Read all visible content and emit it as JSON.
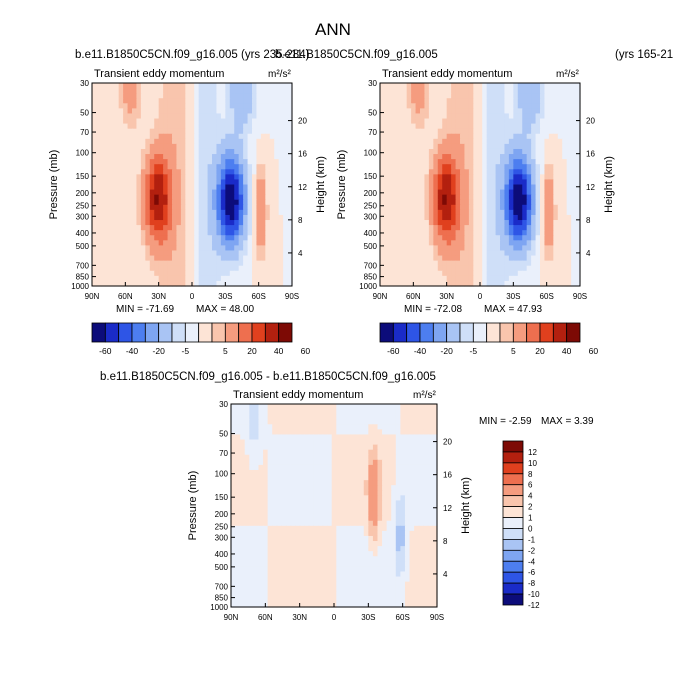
{
  "figure": {
    "title": "ANN",
    "top_left_caption": "b.e11.B1850C5CN.f09_g16.005 (yrs 235-284)",
    "top_right_caption": "b.e11.B1850C5CN.f09_g16.005",
    "top_right_years": "(yrs 165-21",
    "diff_caption": "b.e11.B1850C5CN.f09_g16.005 - b.e11.B1850C5CN.f09_g16.005"
  },
  "chart_data": [
    {
      "type": "heatmap",
      "id": "case1",
      "title": "Transient eddy momentum",
      "units": "m²/s²",
      "xlabel": "",
      "ylabel": "Pressure (mb)",
      "y2label": "Height (km)",
      "x_ticks": [
        "90N",
        "60N",
        "30N",
        "0",
        "30S",
        "60S",
        "90S"
      ],
      "y_ticks": [
        "30",
        "50",
        "70",
        "100",
        "150",
        "200",
        "250",
        "300",
        "400",
        "500",
        "700",
        "850",
        "1000"
      ],
      "y_tick_values": [
        30,
        50,
        70,
        100,
        150,
        200,
        250,
        300,
        400,
        500,
        700,
        850,
        1000
      ],
      "y2_ticks": [
        "4",
        "8",
        "12",
        "16",
        "20"
      ],
      "ylim": [
        1000,
        30
      ],
      "xlim": [
        90,
        -90
      ],
      "min_label": "MIN = -71.69",
      "max_label": "MAX =  48.00",
      "contour_levels": [
        -60,
        -50,
        -40,
        -30,
        -20,
        -10,
        -5,
        0,
        5,
        10,
        20,
        30,
        40,
        50,
        60
      ],
      "colorbar_labels": [
        "-60",
        "-40",
        "-20",
        "-5",
        "5",
        "20",
        "40",
        "60"
      ],
      "min": -71.69,
      "max": 48.0,
      "features": [
        {
          "lat": 31,
          "p": 220,
          "value": 48.0,
          "width_lat": 12
        },
        {
          "lat": -35,
          "p": 230,
          "value": -71.69,
          "width_lat": 12
        },
        {
          "lat": -62,
          "p": 280,
          "value": 22,
          "width_lat": 5
        }
      ]
    },
    {
      "type": "heatmap",
      "id": "case2",
      "title": "Transient eddy momentum",
      "units": "m²/s²",
      "xlabel": "",
      "ylabel": "Pressure (mb)",
      "y2label": "Height (km)",
      "x_ticks": [
        "90N",
        "60N",
        "30N",
        "0",
        "30S",
        "60S",
        "90S"
      ],
      "y_ticks": [
        "30",
        "50",
        "70",
        "100",
        "150",
        "200",
        "250",
        "300",
        "400",
        "500",
        "700",
        "850",
        "1000"
      ],
      "y_tick_values": [
        30,
        50,
        70,
        100,
        150,
        200,
        250,
        300,
        400,
        500,
        700,
        850,
        1000
      ],
      "y2_ticks": [
        "4",
        "8",
        "12",
        "16",
        "20"
      ],
      "ylim": [
        1000,
        30
      ],
      "xlim": [
        90,
        -90
      ],
      "min_label": "MIN = -72.08",
      "max_label": "MAX =  47.93",
      "contour_levels": [
        -60,
        -50,
        -40,
        -30,
        -20,
        -10,
        -5,
        0,
        5,
        10,
        20,
        30,
        40,
        50,
        60
      ],
      "colorbar_labels": [
        "-60",
        "-40",
        "-20",
        "-5",
        "5",
        "20",
        "40",
        "60"
      ],
      "min": -72.08,
      "max": 47.93,
      "features": [
        {
          "lat": 31,
          "p": 220,
          "value": 47.93,
          "width_lat": 12
        },
        {
          "lat": -35,
          "p": 230,
          "value": -72.08,
          "width_lat": 12
        },
        {
          "lat": -62,
          "p": 280,
          "value": 22,
          "width_lat": 5
        }
      ]
    },
    {
      "type": "heatmap",
      "id": "difference",
      "title": "Transient eddy momentum",
      "units": "m²/s²",
      "xlabel": "",
      "ylabel": "Pressure (mb)",
      "y2label": "Height (km)",
      "x_ticks": [
        "90N",
        "60N",
        "30N",
        "0",
        "30S",
        "60S",
        "90S"
      ],
      "y_ticks": [
        "30",
        "50",
        "70",
        "100",
        "150",
        "200",
        "250",
        "300",
        "400",
        "500",
        "700",
        "850",
        "1000"
      ],
      "y_tick_values": [
        30,
        50,
        70,
        100,
        150,
        200,
        250,
        300,
        400,
        500,
        700,
        850,
        1000
      ],
      "y2_ticks": [
        "4",
        "8",
        "12",
        "16",
        "20"
      ],
      "ylim": [
        1000,
        30
      ],
      "xlim": [
        90,
        -90
      ],
      "min_label": "MIN =  -2.59",
      "max_label": "MAX =   3.39",
      "contour_levels": [
        -12,
        -10,
        -8,
        -6,
        -4,
        -2,
        -1,
        0,
        1,
        2,
        4,
        6,
        8,
        10,
        12
      ],
      "colorbar_labels": [
        "12",
        "10",
        "8",
        "6",
        "4",
        "2",
        "1",
        "0",
        "-1",
        "-2",
        "-4",
        "-6",
        "-8",
        "-10",
        "-12"
      ],
      "min": -2.59,
      "max": 3.39,
      "features": [
        {
          "lat": -35,
          "p": 150,
          "value": 3.39,
          "width_lat": 5
        },
        {
          "lat": -58,
          "p": 300,
          "value": -2.59,
          "width_lat": 5
        },
        {
          "lat": 70,
          "p": 40,
          "value": -1.5,
          "width_lat": 6
        }
      ]
    }
  ],
  "colors": {
    "palette": [
      "#0c0c7a",
      "#1a2bc8",
      "#2e55e6",
      "#4d7ef0",
      "#7ea5f2",
      "#a9c4f4",
      "#cfdff8",
      "#eaf0fb",
      "#fde4d6",
      "#f9c5ad",
      "#f59c7f",
      "#ee6f4f",
      "#e0401e",
      "#b3200f",
      "#7d0a05"
    ]
  }
}
